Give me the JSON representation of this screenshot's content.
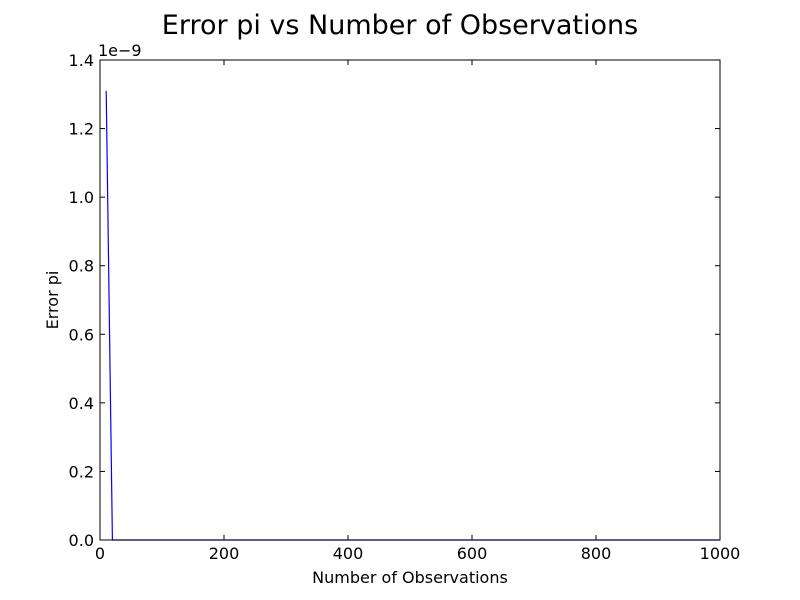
{
  "chart_data": {
    "type": "line",
    "title": "Error pi vs Number of Observations",
    "xlabel": "Number of Observations",
    "ylabel": "Error pi",
    "xlim": [
      0,
      1000
    ],
    "ylim": [
      0,
      1.4e-09
    ],
    "y_offset_label": "1e−9",
    "x_ticks": [
      0,
      200,
      400,
      600,
      800,
      1000
    ],
    "x_tick_labels": [
      "0",
      "200",
      "400",
      "600",
      "800",
      "1000"
    ],
    "y_ticks": [
      0,
      2e-10,
      4e-10,
      6e-10,
      8e-10,
      1e-09,
      1.2e-09,
      1.4e-09
    ],
    "y_tick_labels": [
      "0.0",
      "0.2",
      "0.4",
      "0.6",
      "0.8",
      "1.0",
      "1.2",
      "1.4"
    ],
    "grid": false,
    "series": [
      {
        "color": "#0000ff",
        "x": [
          10,
          20,
          30,
          50,
          100,
          200,
          300,
          400,
          500,
          600,
          700,
          800,
          900,
          1000
        ],
        "y": [
          1.31e-09,
          0,
          0,
          0,
          0,
          0,
          0,
          0,
          0,
          0,
          0,
          0,
          0,
          0
        ]
      }
    ]
  }
}
